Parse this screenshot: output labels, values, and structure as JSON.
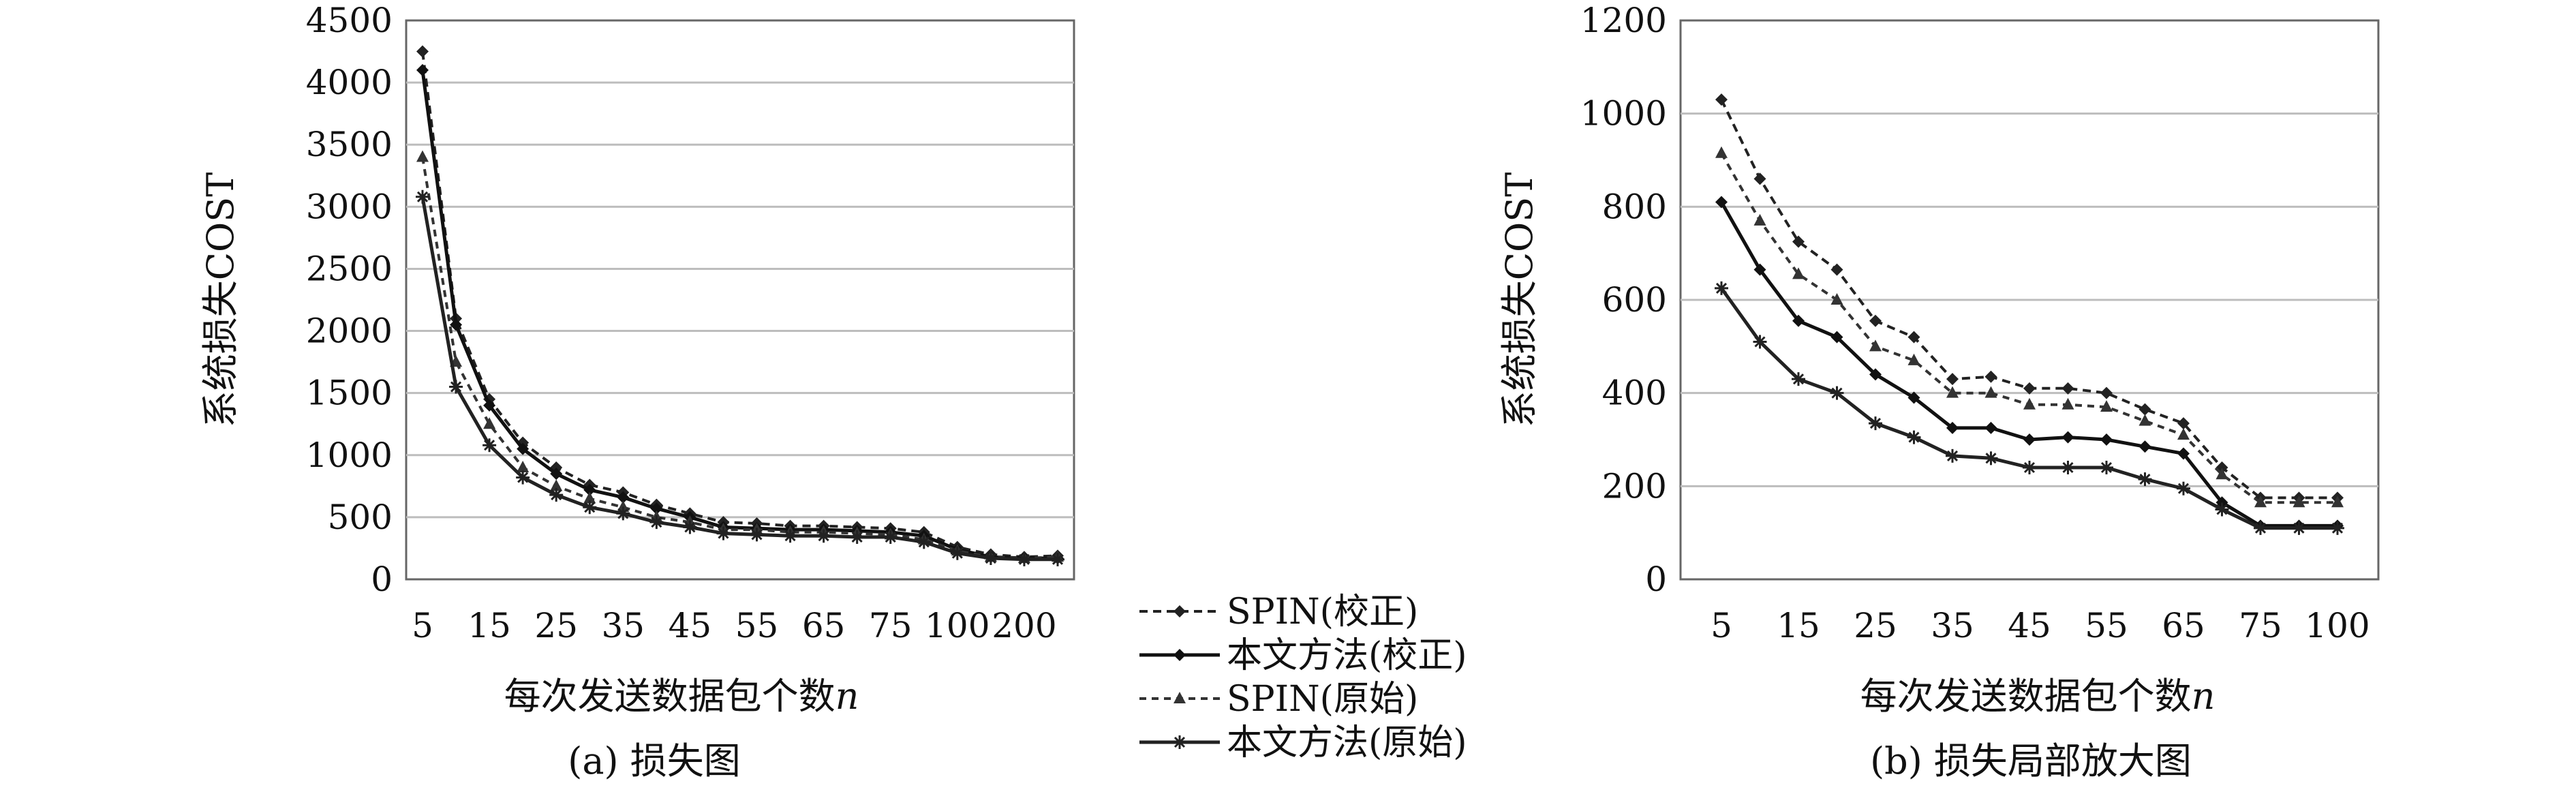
{
  "legend": {
    "items": [
      {
        "label": "SPIN(校正)",
        "style": "dashed"
      },
      {
        "label": "本文方法(校正)",
        "style": "solid"
      },
      {
        "label": "SPIN(原始)",
        "style": "dashed"
      },
      {
        "label": "本文方法(原始)",
        "style": "solid"
      }
    ]
  },
  "chart_data": [
    {
      "type": "line",
      "caption": "(a) 损失图",
      "xlabel": "每次发送数据包个数",
      "xlabel_var": "n",
      "ylabel": "系统损失COST",
      "ylim": [
        0,
        4500
      ],
      "yticks": [
        0,
        500,
        1000,
        1500,
        2000,
        2500,
        3000,
        3500,
        4000,
        4500
      ],
      "x": [
        "5",
        "10",
        "15",
        "20",
        "25",
        "30",
        "35",
        "40",
        "45",
        "50",
        "55",
        "60",
        "65",
        "70",
        "75",
        "80",
        "100",
        "150",
        "200",
        "250"
      ],
      "xtick_labels": [
        "5",
        "15",
        "25",
        "35",
        "45",
        "55",
        "65",
        "75",
        "100",
        "200"
      ],
      "grid": true,
      "series": [
        {
          "name": "SPIN(校正)",
          "values": [
            4250,
            2100,
            1450,
            1100,
            900,
            760,
            700,
            600,
            530,
            460,
            450,
            430,
            430,
            420,
            410,
            380,
            260,
            200,
            180,
            190
          ]
        },
        {
          "name": "本文方法(校正)",
          "values": [
            4100,
            2050,
            1400,
            1050,
            850,
            720,
            660,
            570,
            500,
            420,
            410,
            400,
            400,
            390,
            380,
            350,
            240,
            180,
            170,
            170
          ]
        },
        {
          "name": "SPIN(原始)",
          "values": [
            3400,
            1750,
            1250,
            900,
            750,
            650,
            580,
            500,
            460,
            400,
            400,
            380,
            380,
            370,
            360,
            320,
            230,
            180,
            170,
            180
          ]
        },
        {
          "name": "本文方法(原始)",
          "values": [
            3080,
            1550,
            1080,
            820,
            680,
            580,
            530,
            460,
            420,
            370,
            360,
            350,
            350,
            340,
            340,
            300,
            210,
            170,
            160,
            160
          ]
        }
      ]
    },
    {
      "type": "line",
      "caption": "(b) 损失局部放大图",
      "xlabel": "每次发送数据包个数",
      "xlabel_var": "n",
      "ylabel": "系统损失COST",
      "ylim": [
        0,
        1200
      ],
      "yticks": [
        0,
        200,
        400,
        600,
        800,
        1000,
        1200
      ],
      "x": [
        "5",
        "10",
        "15",
        "20",
        "25",
        "30",
        "35",
        "40",
        "45",
        "50",
        "55",
        "60",
        "65",
        "70",
        "75",
        "80",
        "100"
      ],
      "xtick_labels": [
        "5",
        "15",
        "25",
        "35",
        "45",
        "55",
        "65",
        "75",
        "100"
      ],
      "grid": true,
      "series": [
        {
          "name": "SPIN(校正)",
          "values": [
            1030,
            860,
            725,
            665,
            555,
            520,
            430,
            435,
            410,
            410,
            400,
            365,
            335,
            240,
            175,
            175,
            175
          ]
        },
        {
          "name": "本文方法(校正)",
          "values": [
            810,
            665,
            555,
            520,
            440,
            390,
            325,
            325,
            300,
            305,
            300,
            285,
            270,
            165,
            115,
            115,
            115
          ]
        },
        {
          "name": "SPIN(原始)",
          "values": [
            915,
            770,
            655,
            600,
            500,
            470,
            400,
            400,
            375,
            375,
            370,
            340,
            310,
            225,
            165,
            165,
            165
          ]
        },
        {
          "name": "本文方法(原始)",
          "values": [
            625,
            510,
            430,
            400,
            335,
            305,
            265,
            260,
            240,
            240,
            240,
            215,
            195,
            150,
            110,
            110,
            110
          ]
        }
      ]
    }
  ]
}
